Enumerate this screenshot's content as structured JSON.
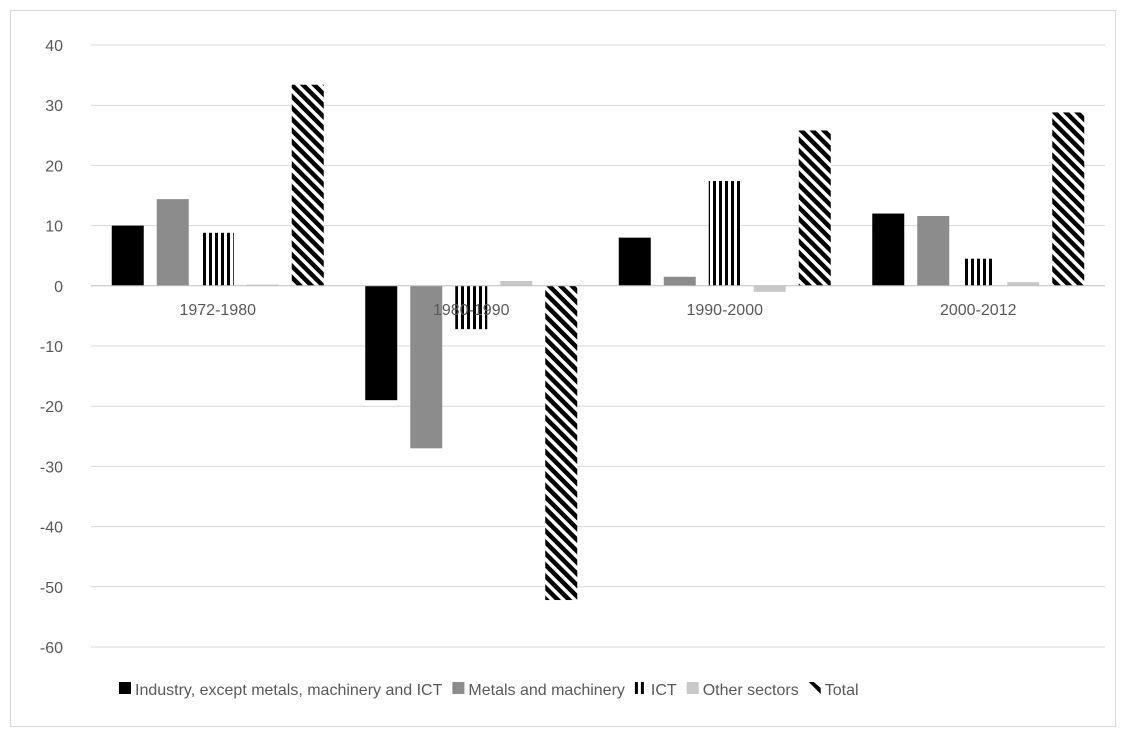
{
  "chart_data": {
    "type": "bar",
    "title": "",
    "xlabel": "",
    "ylabel": "",
    "categories": [
      "1972-1980",
      "1980-1990",
      "1990-2000",
      "2000-2012"
    ],
    "ylim": [
      -60,
      40
    ],
    "yticks": [
      40,
      30,
      20,
      10,
      0,
      -10,
      -20,
      -30,
      -40,
      -50,
      -60
    ],
    "grid": true,
    "legend_position": "bottom",
    "series": [
      {
        "name": "Industry, except metals, machinery and ICT",
        "values": [
          10,
          -19,
          8,
          12
        ],
        "color": "#000000",
        "pattern": "solid"
      },
      {
        "name": "Metals and machinery",
        "values": [
          14.4,
          -27,
          1.5,
          11.6
        ],
        "color": "#8c8c8c",
        "pattern": "solid"
      },
      {
        "name": "ICT",
        "values": [
          8.8,
          -7.2,
          17.4,
          4.5
        ],
        "color": "#000000",
        "pattern": "vertical-stripes"
      },
      {
        "name": "Other sectors",
        "values": [
          0.2,
          0.8,
          -1,
          0.6
        ],
        "color": "#c8c8c8",
        "pattern": "solid"
      },
      {
        "name": "Total",
        "values": [
          33.4,
          -52.2,
          25.8,
          28.8
        ],
        "color": "#000000",
        "pattern": "diagonal-stripes"
      }
    ]
  }
}
